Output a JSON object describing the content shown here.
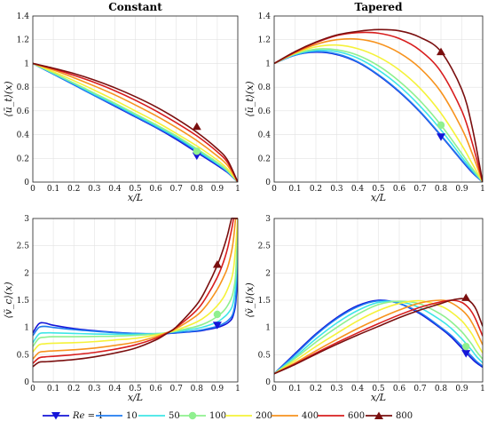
{
  "chart_data": [
    {
      "type": "line",
      "title": "Constant",
      "xlabel": "x/L",
      "ylabel": "⟨ū_t⟩(x)",
      "xlim": [
        0,
        1
      ],
      "ylim": [
        0,
        1.4
      ],
      "xticks": [
        "0",
        "0.1",
        "0.2",
        "0.3",
        "0.4",
        "0.5",
        "0.6",
        "0.7",
        "0.8",
        "0.9",
        "1"
      ],
      "yticks": [
        "0",
        "0.2",
        "0.4",
        "0.6",
        "0.8",
        "1",
        "1.2",
        "1.4"
      ],
      "grid": true,
      "x": [
        0,
        0.1,
        0.2,
        0.3,
        0.4,
        0.5,
        0.6,
        0.7,
        0.8,
        0.9,
        0.95,
        1.0
      ],
      "series": [
        {
          "name": "Re = 1",
          "values": [
            1.0,
            0.91,
            0.82,
            0.73,
            0.64,
            0.55,
            0.46,
            0.36,
            0.25,
            0.14,
            0.08,
            0.0
          ],
          "marker_x": 0.8,
          "marker_y": 0.22
        },
        {
          "name": "10",
          "values": [
            1.0,
            0.91,
            0.82,
            0.73,
            0.645,
            0.555,
            0.465,
            0.37,
            0.26,
            0.15,
            0.085,
            0.0
          ]
        },
        {
          "name": "50",
          "values": [
            1.0,
            0.915,
            0.83,
            0.74,
            0.655,
            0.565,
            0.475,
            0.38,
            0.27,
            0.155,
            0.09,
            0.0
          ]
        },
        {
          "name": "100",
          "values": [
            1.0,
            0.92,
            0.835,
            0.75,
            0.665,
            0.575,
            0.485,
            0.39,
            0.28,
            0.165,
            0.095,
            0.0
          ],
          "marker_x": 0.8,
          "marker_y": 0.26
        },
        {
          "name": "200",
          "values": [
            1.0,
            0.93,
            0.855,
            0.775,
            0.69,
            0.6,
            0.51,
            0.41,
            0.305,
            0.185,
            0.11,
            0.0
          ]
        },
        {
          "name": "400",
          "values": [
            1.0,
            0.945,
            0.88,
            0.81,
            0.735,
            0.65,
            0.56,
            0.46,
            0.35,
            0.22,
            0.14,
            0.0
          ]
        },
        {
          "name": "600",
          "values": [
            1.0,
            0.955,
            0.9,
            0.84,
            0.77,
            0.69,
            0.6,
            0.5,
            0.39,
            0.255,
            0.165,
            0.0
          ]
        },
        {
          "name": "800",
          "values": [
            1.0,
            0.96,
            0.915,
            0.86,
            0.795,
            0.72,
            0.635,
            0.535,
            0.42,
            0.28,
            0.185,
            0.0
          ],
          "marker_x": 0.8,
          "marker_y": 0.47
        }
      ]
    },
    {
      "type": "line",
      "title": "Tapered",
      "xlabel": "x/L",
      "ylabel": "⟨ū_t⟩(x)",
      "xlim": [
        0,
        1
      ],
      "ylim": [
        0,
        1.4
      ],
      "xticks": [
        "0",
        "0.1",
        "0.2",
        "0.3",
        "0.4",
        "0.5",
        "0.6",
        "0.7",
        "0.8",
        "0.9",
        "1"
      ],
      "yticks": [
        "0",
        "0.2",
        "0.4",
        "0.6",
        "0.8",
        "1",
        "1.2",
        "1.4"
      ],
      "grid": true,
      "x": [
        0,
        0.1,
        0.2,
        0.3,
        0.4,
        0.5,
        0.6,
        0.7,
        0.8,
        0.9,
        0.95,
        1.0
      ],
      "series": [
        {
          "name": "Re = 1",
          "values": [
            1.0,
            1.07,
            1.095,
            1.075,
            1.01,
            0.9,
            0.76,
            0.59,
            0.39,
            0.18,
            0.08,
            0.0
          ],
          "marker_x": 0.8,
          "marker_y": 0.38
        },
        {
          "name": "10",
          "values": [
            1.0,
            1.07,
            1.1,
            1.08,
            1.015,
            0.905,
            0.765,
            0.595,
            0.395,
            0.185,
            0.085,
            0.0
          ]
        },
        {
          "name": "50",
          "values": [
            1.0,
            1.075,
            1.11,
            1.1,
            1.045,
            0.945,
            0.81,
            0.64,
            0.44,
            0.21,
            0.1,
            0.0
          ]
        },
        {
          "name": "100",
          "values": [
            1.0,
            1.08,
            1.12,
            1.115,
            1.07,
            0.98,
            0.85,
            0.685,
            0.48,
            0.24,
            0.115,
            0.0
          ],
          "marker_x": 0.8,
          "marker_y": 0.48
        },
        {
          "name": "200",
          "values": [
            1.0,
            1.085,
            1.14,
            1.155,
            1.125,
            1.055,
            0.945,
            0.79,
            0.58,
            0.31,
            0.155,
            0.0
          ]
        },
        {
          "name": "400",
          "values": [
            1.0,
            1.09,
            1.16,
            1.2,
            1.205,
            1.17,
            1.09,
            0.96,
            0.76,
            0.45,
            0.24,
            0.0
          ]
        },
        {
          "name": "600",
          "values": [
            1.0,
            1.095,
            1.175,
            1.235,
            1.26,
            1.255,
            1.21,
            1.11,
            0.93,
            0.6,
            0.33,
            0.0
          ]
        },
        {
          "name": "800",
          "values": [
            1.0,
            1.1,
            1.18,
            1.24,
            1.27,
            1.285,
            1.275,
            1.22,
            1.1,
            0.78,
            0.46,
            0.0
          ],
          "marker_x": 0.8,
          "marker_y": 1.1
        }
      ]
    },
    {
      "type": "line",
      "title": "",
      "xlabel": "x/L",
      "ylabel": "⟨ṽ_c⟩(x)",
      "xlim": [
        0,
        1
      ],
      "ylim": [
        0,
        3
      ],
      "xticks": [
        "0",
        "0.1",
        "0.2",
        "0.3",
        "0.4",
        "0.5",
        "0.6",
        "0.7",
        "0.8",
        "0.9",
        "1"
      ],
      "yticks": [
        "0",
        "0.5",
        "1",
        "1.5",
        "2",
        "2.5",
        "3"
      ],
      "grid": true,
      "x": [
        0,
        0.03,
        0.06,
        0.1,
        0.2,
        0.3,
        0.4,
        0.5,
        0.6,
        0.65,
        0.7,
        0.8,
        0.85,
        0.9,
        0.93,
        0.95,
        0.97,
        0.98,
        0.99,
        1.0
      ],
      "series": [
        {
          "name": "Re = 1",
          "values": [
            0.9,
            1.07,
            1.08,
            1.04,
            0.98,
            0.94,
            0.91,
            0.89,
            0.88,
            0.885,
            0.9,
            0.93,
            0.96,
            1.0,
            1.04,
            1.08,
            1.15,
            1.25,
            1.45,
            2.0
          ],
          "marker_x": 0.9,
          "marker_y": 1.04
        },
        {
          "name": "10",
          "values": [
            0.85,
            1.0,
            1.02,
            1.0,
            0.96,
            0.93,
            0.905,
            0.89,
            0.885,
            0.89,
            0.905,
            0.94,
            0.975,
            1.02,
            1.07,
            1.12,
            1.2,
            1.3,
            1.55,
            2.3
          ]
        },
        {
          "name": "50",
          "values": [
            0.72,
            0.88,
            0.9,
            0.9,
            0.89,
            0.88,
            0.875,
            0.875,
            0.885,
            0.9,
            0.925,
            0.98,
            1.03,
            1.1,
            1.18,
            1.25,
            1.36,
            1.5,
            1.8,
            2.6
          ]
        },
        {
          "name": "100",
          "values": [
            0.65,
            0.8,
            0.82,
            0.83,
            0.83,
            0.835,
            0.84,
            0.855,
            0.88,
            0.9,
            0.935,
            1.02,
            1.09,
            1.2,
            1.3,
            1.4,
            1.55,
            1.7,
            2.0,
            2.9
          ],
          "marker_x": 0.9,
          "marker_y": 1.24
        },
        {
          "name": "200",
          "values": [
            0.55,
            0.68,
            0.7,
            0.71,
            0.72,
            0.74,
            0.77,
            0.8,
            0.86,
            0.9,
            0.95,
            1.1,
            1.22,
            1.4,
            1.55,
            1.7,
            1.9,
            2.1,
            2.5,
            3.0
          ]
        },
        {
          "name": "400",
          "values": [
            0.42,
            0.54,
            0.56,
            0.57,
            0.59,
            0.62,
            0.67,
            0.73,
            0.83,
            0.9,
            0.98,
            1.22,
            1.42,
            1.7,
            1.92,
            2.1,
            2.4,
            2.65,
            3.0,
            3.0
          ]
        },
        {
          "name": "600",
          "values": [
            0.34,
            0.44,
            0.46,
            0.47,
            0.5,
            0.54,
            0.6,
            0.68,
            0.8,
            0.89,
            1.0,
            1.32,
            1.58,
            1.92,
            2.2,
            2.45,
            2.8,
            3.0,
            3.0,
            3.0
          ]
        },
        {
          "name": "800",
          "values": [
            0.28,
            0.36,
            0.37,
            0.38,
            0.41,
            0.46,
            0.53,
            0.62,
            0.77,
            0.88,
            1.01,
            1.42,
            1.74,
            2.14,
            2.45,
            2.7,
            3.0,
            3.0,
            3.0,
            3.0
          ],
          "marker_x": 0.9,
          "marker_y": 2.16
        }
      ]
    },
    {
      "type": "line",
      "title": "",
      "xlabel": "x/L",
      "ylabel": "⟨ṽ_t⟩(x)",
      "xlim": [
        0,
        1
      ],
      "ylim": [
        0,
        3
      ],
      "xticks": [
        "0",
        "0.1",
        "0.2",
        "0.3",
        "0.4",
        "0.5",
        "0.6",
        "0.7",
        "0.8",
        "0.9",
        "1"
      ],
      "yticks": [
        "0",
        "0.5",
        "1",
        "1.5",
        "2",
        "2.5",
        "3"
      ],
      "grid": true,
      "x": [
        0,
        0.1,
        0.2,
        0.3,
        0.4,
        0.5,
        0.6,
        0.7,
        0.8,
        0.85,
        0.9,
        0.93,
        0.95,
        0.97,
        1.0
      ],
      "series": [
        {
          "name": "Re = 1",
          "values": [
            0.15,
            0.52,
            0.88,
            1.18,
            1.4,
            1.5,
            1.44,
            1.25,
            0.98,
            0.82,
            0.62,
            0.5,
            0.42,
            0.35,
            0.27
          ],
          "marker_x": 0.92,
          "marker_y": 0.52
        },
        {
          "name": "10",
          "values": [
            0.15,
            0.5,
            0.86,
            1.16,
            1.38,
            1.49,
            1.44,
            1.27,
            1.0,
            0.85,
            0.66,
            0.54,
            0.46,
            0.38,
            0.29
          ]
        },
        {
          "name": "50",
          "values": [
            0.15,
            0.46,
            0.79,
            1.08,
            1.31,
            1.46,
            1.47,
            1.36,
            1.13,
            0.98,
            0.79,
            0.66,
            0.57,
            0.47,
            0.35
          ]
        },
        {
          "name": "100",
          "values": [
            0.15,
            0.43,
            0.73,
            1.0,
            1.24,
            1.42,
            1.48,
            1.43,
            1.24,
            1.1,
            0.92,
            0.78,
            0.68,
            0.56,
            0.42
          ],
          "marker_x": 0.92,
          "marker_y": 0.65
        },
        {
          "name": "200",
          "values": [
            0.15,
            0.39,
            0.65,
            0.89,
            1.12,
            1.31,
            1.44,
            1.49,
            1.39,
            1.28,
            1.12,
            0.98,
            0.87,
            0.73,
            0.53
          ]
        },
        {
          "name": "400",
          "values": [
            0.15,
            0.35,
            0.57,
            0.78,
            0.98,
            1.16,
            1.32,
            1.45,
            1.5,
            1.45,
            1.32,
            1.2,
            1.08,
            0.93,
            0.68
          ]
        },
        {
          "name": "600",
          "values": [
            0.15,
            0.33,
            0.53,
            0.72,
            0.9,
            1.07,
            1.23,
            1.37,
            1.47,
            1.5,
            1.46,
            1.37,
            1.27,
            1.12,
            0.84
          ]
        },
        {
          "name": "800",
          "values": [
            0.15,
            0.32,
            0.51,
            0.69,
            0.86,
            1.02,
            1.18,
            1.32,
            1.44,
            1.5,
            1.53,
            1.5,
            1.44,
            1.32,
            1.02
          ],
          "marker_x": 0.92,
          "marker_y": 1.55
        }
      ]
    }
  ],
  "legend": {
    "placement": "bottom",
    "items": [
      {
        "label": "Re = 1",
        "color": "#1515d8",
        "marker": "triangle-down"
      },
      {
        "label": "10",
        "color": "#1f7cf0",
        "marker": "none"
      },
      {
        "label": "50",
        "color": "#3fe6e6",
        "marker": "none"
      },
      {
        "label": "100",
        "color": "#8ff08f",
        "marker": "circle"
      },
      {
        "label": "200",
        "color": "#f5f23a",
        "marker": "none"
      },
      {
        "label": "400",
        "color": "#f7931e",
        "marker": "none"
      },
      {
        "label": "600",
        "color": "#d81e1e",
        "marker": "none"
      },
      {
        "label": "800",
        "color": "#7a0f0f",
        "marker": "triangle-up"
      }
    ]
  }
}
